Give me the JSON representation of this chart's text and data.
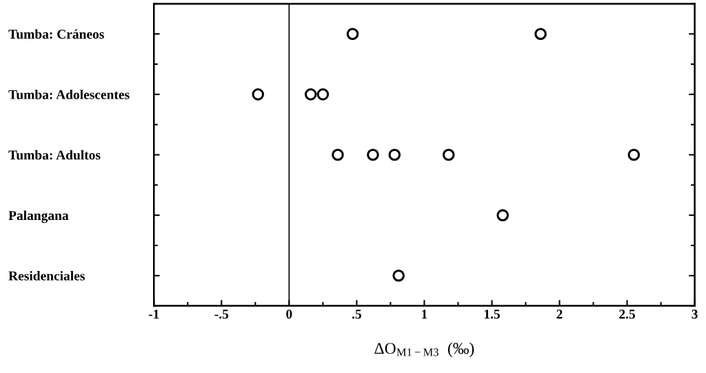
{
  "chart_data": {
    "type": "scatter",
    "orientation": "horizontal",
    "categories": [
      "Tumba: Cráneos",
      "Tumba: Adolescentes",
      "Tumba: Adultos",
      "Palangana",
      "Residenciales"
    ],
    "series": [
      {
        "color": "#000000",
        "x": [
          "Tumba: Cráneos",
          "Tumba: Cráneos",
          "Tumba: Adolescentes",
          "Tumba: Adolescentes",
          "Tumba: Adolescentes",
          "Tumba: Adultos",
          "Tumba: Adultos",
          "Tumba: Adultos",
          "Tumba: Adultos",
          "Tumba: Adultos",
          "Palangana",
          "Residenciales"
        ],
        "values": [
          0.47,
          1.86,
          -0.23,
          0.16,
          0.25,
          0.36,
          0.62,
          0.78,
          1.18,
          2.55,
          1.58,
          0.81
        ]
      }
    ],
    "xlim": [
      -1,
      3
    ],
    "xticks": [
      -1,
      {
        "value": -0.5,
        "label": "-.5"
      },
      0,
      {
        "value": 0.5,
        "label": ".5"
      },
      1,
      1.5,
      2,
      2.5,
      3
    ],
    "xlabel": "ΔO$_{M1−M3}$  (‰)",
    "ref_lines": [
      {
        "axis": "x",
        "value": 0,
        "color": "#000000"
      }
    ],
    "marker": "circle",
    "grid": false,
    "legend": false
  }
}
